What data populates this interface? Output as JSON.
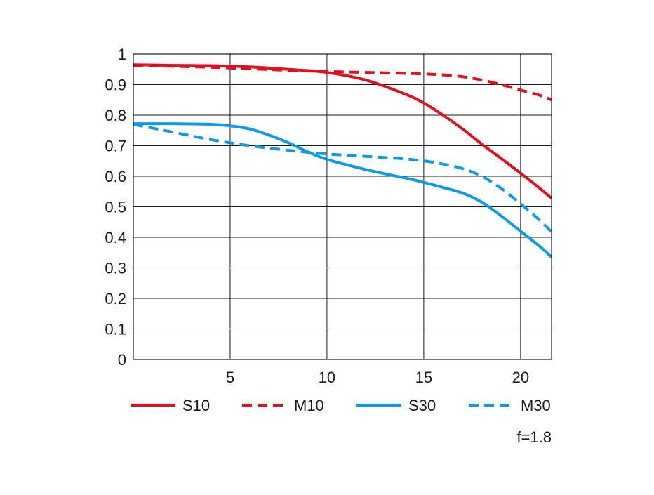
{
  "chart_data": {
    "type": "line",
    "title": "",
    "xlabel": "",
    "ylabel": "",
    "xlim": [
      0,
      21.6
    ],
    "ylim": [
      0,
      1
    ],
    "x_ticks": [
      5,
      10,
      15,
      20
    ],
    "x_tick_labels": [
      "5",
      "10",
      "15",
      "20"
    ],
    "y_ticks": [
      0,
      0.1,
      0.2,
      0.3,
      0.4,
      0.5,
      0.6,
      0.7,
      0.8,
      0.9,
      1
    ],
    "y_tick_labels": [
      "0",
      "0.1",
      "0.2",
      "0.3",
      "0.4",
      "0.5",
      "0.6",
      "0.7",
      "0.8",
      "0.9",
      "1"
    ],
    "grid": true,
    "legend_position": "bottom",
    "annotation": "f=1.8",
    "series": [
      {
        "name": "S10",
        "color": "#e0101e",
        "dash": "solid",
        "x": [
          0,
          2,
          4,
          6,
          8,
          10,
          12,
          14,
          15,
          16,
          17,
          18,
          19,
          20,
          21,
          21.6
        ],
        "y": [
          0.965,
          0.963,
          0.962,
          0.958,
          0.95,
          0.94,
          0.915,
          0.87,
          0.84,
          0.8,
          0.755,
          0.705,
          0.658,
          0.61,
          0.56,
          0.528
        ]
      },
      {
        "name": "M10",
        "color": "#e0101e",
        "dash": "dashed",
        "x": [
          0,
          2,
          4,
          6,
          8,
          10,
          12,
          14,
          15,
          16,
          17,
          18,
          19,
          20,
          21,
          21.6
        ],
        "y": [
          0.963,
          0.96,
          0.957,
          0.952,
          0.947,
          0.943,
          0.94,
          0.937,
          0.935,
          0.932,
          0.926,
          0.915,
          0.9,
          0.882,
          0.865,
          0.85
        ]
      },
      {
        "name": "S30",
        "color": "#0f9ae6",
        "dash": "solid",
        "x": [
          0,
          2,
          4,
          5,
          6,
          7,
          8,
          9,
          10,
          11,
          12,
          13,
          14,
          15,
          16,
          17,
          18,
          19,
          20,
          21,
          21.6
        ],
        "y": [
          0.772,
          0.772,
          0.77,
          0.765,
          0.755,
          0.735,
          0.71,
          0.68,
          0.655,
          0.638,
          0.622,
          0.608,
          0.595,
          0.58,
          0.563,
          0.545,
          0.515,
          0.47,
          0.42,
          0.37,
          0.335
        ]
      },
      {
        "name": "M30",
        "color": "#0f9ae6",
        "dash": "dashed",
        "x": [
          0,
          2,
          4,
          6,
          8,
          10,
          12,
          14,
          15,
          16,
          17,
          18,
          19,
          20,
          21,
          21.6
        ],
        "y": [
          0.77,
          0.745,
          0.72,
          0.7,
          0.685,
          0.673,
          0.665,
          0.657,
          0.65,
          0.64,
          0.625,
          0.6,
          0.56,
          0.51,
          0.455,
          0.418
        ]
      }
    ]
  }
}
